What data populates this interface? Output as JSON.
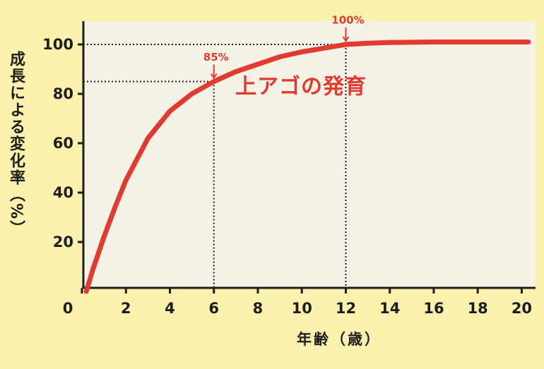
{
  "chart_data": {
    "type": "line",
    "x_label": "年齢（歳）",
    "y_label": "成長による変化率（%）",
    "x": [
      0.2,
      0.5,
      1,
      1.5,
      2,
      3,
      4,
      5,
      6,
      7,
      8,
      9,
      10,
      11,
      12,
      13,
      14,
      16,
      18,
      20,
      20.3
    ],
    "series": [
      {
        "name": "上アゴの発育",
        "color": "#e13a2f",
        "values": [
          0,
          9,
          22,
          34,
          45,
          62,
          73,
          80,
          85,
          89,
          92,
          95,
          97,
          98.5,
          100,
          100.5,
          100.8,
          101,
          101,
          101,
          101
        ]
      }
    ],
    "xlim": [
      0,
      20.5
    ],
    "ylim": [
      0,
      108
    ],
    "xticks": [
      0,
      2,
      4,
      6,
      8,
      10,
      12,
      14,
      16,
      18,
      20
    ],
    "yticks": [
      20,
      40,
      60,
      80,
      100
    ],
    "annotations": [
      {
        "x": 6,
        "y": 85,
        "label": "85%"
      },
      {
        "x": 12,
        "y": 100,
        "label": "100%"
      }
    ]
  }
}
